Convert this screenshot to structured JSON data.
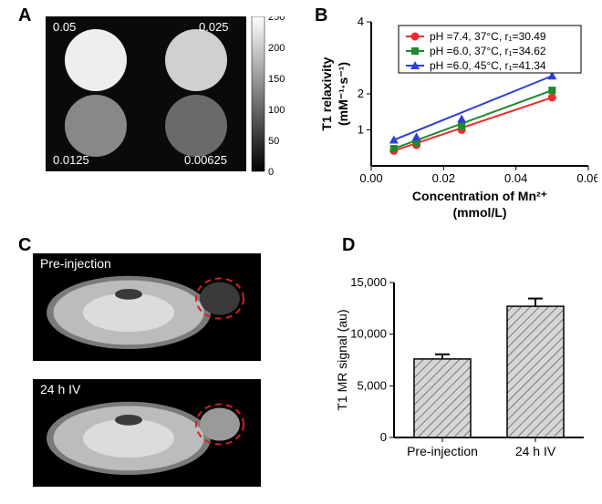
{
  "panelA": {
    "label": "A",
    "overlay_text": [
      "0.05",
      "0.025",
      "0.0125",
      "0.00625"
    ],
    "circle_shades": [
      "#eeeeee",
      "#d0d0d0",
      "#888888",
      "#6a6a6a"
    ],
    "background": "#0a0a0a",
    "colorbar_ticks": [
      "250",
      "200",
      "150",
      "100",
      "50",
      "0"
    ]
  },
  "panelB": {
    "label": "B",
    "ylabel": "T1 relaxivity",
    "ylabel_units": "(mM⁻¹·s⁻¹)",
    "xlabel_line1": "Concentration of Mn²⁺",
    "xlabel_line2": "(mmol/L)",
    "xlim": [
      0,
      0.06
    ],
    "ylim": [
      0,
      4
    ],
    "xticks": [
      0.0,
      0.02,
      0.04,
      0.06
    ],
    "xtick_labels": [
      "0.00",
      "0.02",
      "0.04",
      "0.06"
    ],
    "yticks": [
      1,
      2,
      4
    ],
    "ytick_labels": [
      "1",
      "2",
      "4"
    ],
    "series": [
      {
        "name": "s1",
        "label": "pH =7.4, 37°C, r₁=30.49",
        "color": "#ef2b2b",
        "marker": "circle",
        "x": [
          0.00625,
          0.0125,
          0.025,
          0.05
        ],
        "y": [
          0.42,
          0.58,
          1.0,
          1.9
        ]
      },
      {
        "name": "s2",
        "label": "pH =6.0, 37°C, r₁=34.62",
        "color": "#1e8a2f",
        "marker": "square",
        "x": [
          0.00625,
          0.0125,
          0.025,
          0.05
        ],
        "y": [
          0.48,
          0.64,
          1.1,
          2.1
        ]
      },
      {
        "name": "s3",
        "label": "pH =6.0, 45°C, r₁=41.34",
        "color": "#2a3fd6",
        "marker": "triangle",
        "x": [
          0.00625,
          0.0125,
          0.025,
          0.05
        ],
        "y": [
          0.72,
          0.8,
          1.3,
          2.5
        ]
      }
    ],
    "legend_fontsize": 12,
    "axis_fontsize": 14
  },
  "panelC": {
    "label": "C",
    "top_caption": "Pre-injection",
    "bottom_caption": "24 h IV",
    "circle_color": "#d62020",
    "background": "#000000"
  },
  "panelD": {
    "label": "D",
    "ylabel": "T1 MR signal (au)",
    "categories": [
      "Pre-injection",
      "24 h IV"
    ],
    "values": [
      7600,
      12700
    ],
    "errors": [
      450,
      750
    ],
    "ylim": [
      0,
      15000
    ],
    "yticks": [
      0,
      5000,
      10000,
      15000
    ],
    "ytick_labels": [
      "0",
      "5,000",
      "10,000",
      "15,000"
    ],
    "bar_fill": "#d6d6d6",
    "bar_stroke": "#000000",
    "axis_fontsize": 14
  }
}
